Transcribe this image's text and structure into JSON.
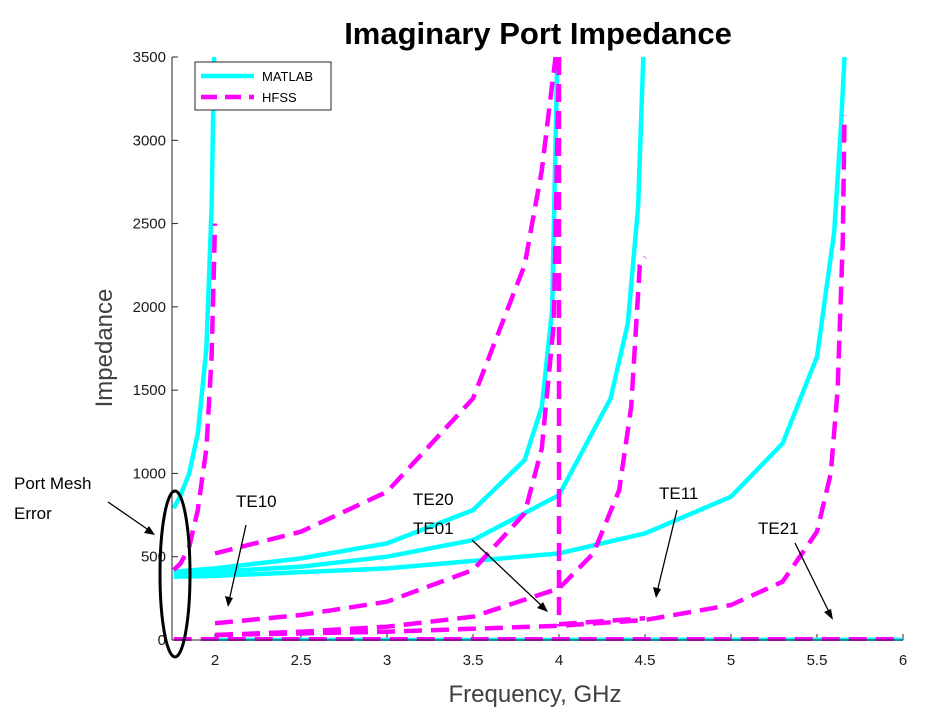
{
  "chart_data": {
    "type": "line",
    "title": "Imaginary Port Impedance",
    "xlabel": "Frequency, GHz",
    "ylabel": "Impedance",
    "xlim": [
      1.75,
      6
    ],
    "ylim": [
      0,
      3500
    ],
    "xticks": [
      2,
      2.5,
      3,
      3.5,
      4,
      4.5,
      5,
      5.5,
      6
    ],
    "xtick_labels": [
      "2",
      "2.5",
      "3",
      "3.5",
      "4",
      "4.5",
      "5",
      "5.5",
      "6"
    ],
    "yticks": [
      0,
      500,
      1000,
      1500,
      2000,
      2500,
      3000,
      3500
    ],
    "ytick_labels": [
      "0",
      "500",
      "1000",
      "1500",
      "2000",
      "2500",
      "3000",
      "3500"
    ],
    "legend": {
      "position": "top-left",
      "entries": [
        "MATLAB",
        "HFSS"
      ]
    },
    "series": [
      {
        "name": "MATLAB",
        "style": "solid",
        "color": "#00FFFF",
        "curves": [
          {
            "mode": "TE10",
            "x": [
              1.76,
              1.8,
              1.85,
              1.9,
              1.95,
              1.98,
              1.995,
              2.0
            ],
            "y": [
              790,
              870,
              1000,
              1240,
              1750,
              2600,
              3500,
              3500
            ]
          },
          {
            "mode": "TE20",
            "x": [
              1.76,
              2.0,
              2.5,
              3.0,
              3.5,
              3.8,
              3.9,
              3.96,
              3.99,
              4.0
            ],
            "y": [
              410,
              430,
              490,
              580,
              780,
              1080,
              1400,
              1980,
              3500,
              3500
            ]
          },
          {
            "mode": "TE01",
            "x": [
              1.76,
              2.0,
              2.5,
              3.0,
              3.5,
              4.0,
              4.3,
              4.4,
              4.46,
              4.49,
              4.5
            ],
            "y": [
              390,
              410,
              440,
              500,
              600,
              870,
              1450,
              1900,
              2600,
              3500,
              3500
            ]
          },
          {
            "mode": "TE11",
            "x": [
              1.76,
              2.0,
              3.0,
              4.0,
              4.5,
              5.0,
              5.3,
              5.5,
              5.6,
              5.64,
              5.66
            ],
            "y": [
              380,
              385,
              430,
              520,
              640,
              860,
              1180,
              1700,
              2450,
              3100,
              3500
            ]
          },
          {
            "mode": "TE10-below",
            "x": [
              2.0,
              6.0
            ],
            "y": [
              0,
              0
            ]
          },
          {
            "mode": "TE20-below",
            "x": [
              4.0,
              6.0
            ],
            "y": [
              0,
              0
            ]
          },
          {
            "mode": "TE11-below",
            "x": [
              4.5,
              6.0
            ],
            "y": [
              0,
              0
            ]
          },
          {
            "mode": "TE21-below",
            "x": [
              5.66,
              6.0
            ],
            "y": [
              0,
              0
            ]
          }
        ]
      },
      {
        "name": "HFSS",
        "style": "dashed",
        "color": "#FF00FF",
        "curves": [
          {
            "mode": "port-mesh",
            "x": [
              1.76,
              1.8,
              1.85,
              1.9,
              1.95,
              1.98,
              2.0
            ],
            "y": [
              420,
              460,
              560,
              780,
              1150,
              1700,
              2500
            ]
          },
          {
            "mode": "TE10",
            "x": [
              2.0,
              2.5,
              3.0,
              3.5,
              3.8,
              3.9,
              3.95,
              3.98
            ],
            "y": [
              520,
              650,
              890,
              1450,
              2250,
              2820,
              3250,
              3500
            ]
          },
          {
            "mode": "TE20",
            "x": [
              2.0,
              2.5,
              3.0,
              3.5,
              3.8,
              3.9,
              3.97,
              4.0
            ],
            "y": [
              100,
              150,
              230,
              420,
              760,
              1150,
              1900,
              3500
            ]
          },
          {
            "mode": "TE01",
            "x": [
              2.0,
              2.5,
              3.0,
              3.5,
              4.0,
              4.2,
              4.35,
              4.42,
              4.47,
              4.5
            ],
            "y": [
              30,
              50,
              80,
              140,
              310,
              520,
              900,
              1400,
              2250,
              2300
            ]
          },
          {
            "mode": "TE11",
            "x": [
              2.0,
              3.0,
              4.0,
              4.5,
              5.0,
              5.3,
              5.5,
              5.58,
              5.62,
              5.65,
              5.66
            ],
            "y": [
              30,
              50,
              85,
              120,
              210,
              350,
              650,
              1000,
              1500,
              2400,
              3150
            ]
          },
          {
            "mode": "floor",
            "x": [
              1.76,
              6.0
            ],
            "y": [
              5,
              5
            ]
          },
          {
            "mode": "TE20-step",
            "x": [
              4.0,
              4.0,
              4.5
            ],
            "y": [
              3500,
              95,
              130
            ]
          }
        ]
      }
    ],
    "annotations": [
      {
        "text": "Port Mesh",
        "text2": "Error",
        "target": [
          1.77,
          600
        ]
      },
      {
        "text": "TE10",
        "target": [
          2.05,
          180
        ]
      },
      {
        "text": "TE20",
        "text2": "TE01",
        "target": [
          3.95,
          170
        ]
      },
      {
        "text": "TE11",
        "target": [
          4.5,
          250
        ]
      },
      {
        "text": "TE21",
        "target": [
          5.63,
          110
        ]
      }
    ]
  }
}
